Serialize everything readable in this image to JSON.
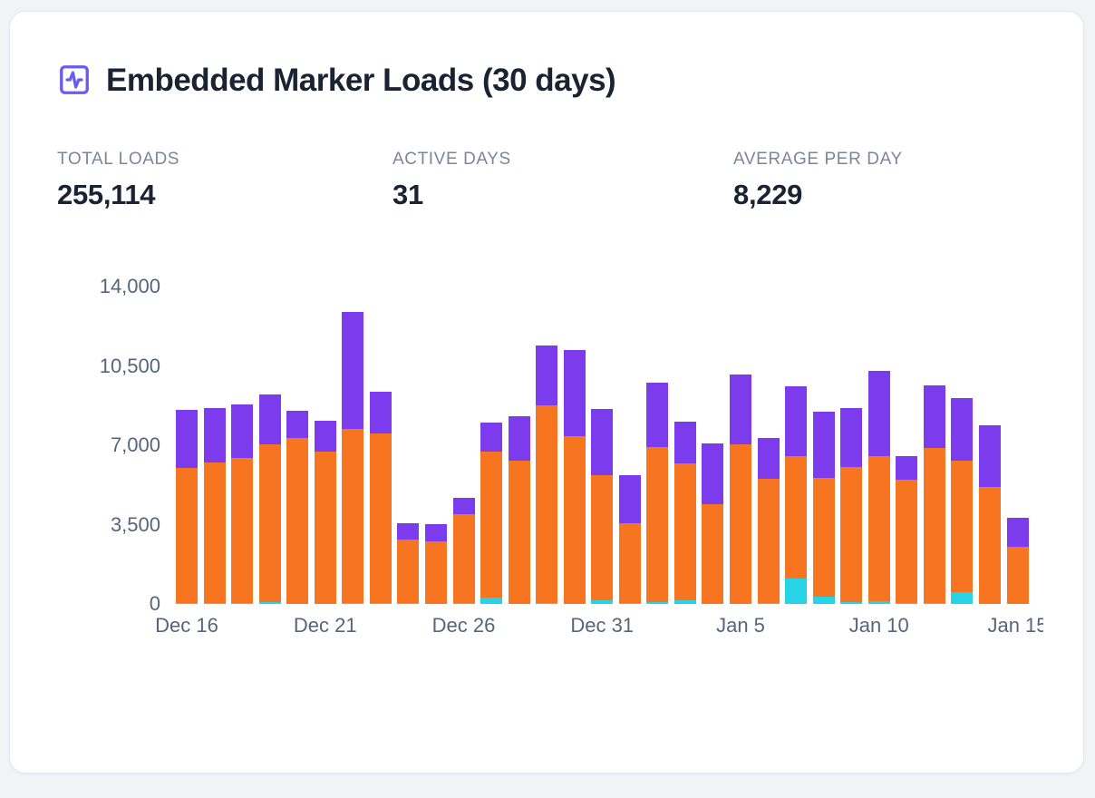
{
  "card": {
    "title": "Embedded Marker Loads (30 days)",
    "stats": [
      {
        "label": "TOTAL LOADS",
        "value": "255,114"
      },
      {
        "label": "ACTIVE DAYS",
        "value": "31"
      },
      {
        "label": "AVERAGE PER DAY",
        "value": "8,229"
      }
    ]
  },
  "colors": {
    "title_icon": "#6A5BF2",
    "title_text": "#1A2332",
    "stat_label": "#7B8697",
    "axis_text": "#55657A",
    "card_background": "#FFFFFF",
    "page_background": "#F2F3F7",
    "card_border": "#E2E7F0"
  },
  "chart_data": {
    "type": "bar",
    "stacked": true,
    "title": "Embedded Marker Loads (30 days)",
    "xlabel": "",
    "ylabel": "",
    "ylim": [
      0,
      14000
    ],
    "y_ticks": [
      0,
      3500,
      7000,
      10500,
      14000
    ],
    "y_tick_labels": [
      "0",
      "3,500",
      "7,000",
      "10,500",
      "14,000"
    ],
    "x_tick_labels": [
      "Dec 16",
      "Dec 21",
      "Dec 26",
      "Dec 31",
      "Jan 5",
      "Jan 10",
      "Jan 15"
    ],
    "x_tick_indices": [
      0,
      5,
      10,
      15,
      20,
      25,
      30
    ],
    "grid": false,
    "legend": false,
    "categories": [
      "Dec 16",
      "Dec 17",
      "Dec 18",
      "Dec 19",
      "Dec 20",
      "Dec 21",
      "Dec 22",
      "Dec 23",
      "Dec 24",
      "Dec 25",
      "Dec 26",
      "Dec 27",
      "Dec 28",
      "Dec 29",
      "Dec 30",
      "Dec 31",
      "Jan 1",
      "Jan 2",
      "Jan 3",
      "Jan 4",
      "Jan 5",
      "Jan 6",
      "Jan 7",
      "Jan 8",
      "Jan 9",
      "Jan 10",
      "Jan 11",
      "Jan 12",
      "Jan 13",
      "Jan 14",
      "Jan 15"
    ],
    "series": [
      {
        "name": "cyan-segment",
        "color": "#26D4E6",
        "values": [
          50,
          40,
          40,
          80,
          0,
          0,
          30,
          50,
          40,
          0,
          40,
          280,
          0,
          30,
          0,
          170,
          60,
          80,
          150,
          0,
          0,
          60,
          1114,
          330,
          90,
          130,
          40,
          30,
          530,
          0,
          0
        ]
      },
      {
        "name": "orange-segment",
        "color": "#F77420",
        "values": [
          5950,
          6200,
          6390,
          6980,
          7330,
          6710,
          7700,
          7480,
          2800,
          2760,
          3920,
          6450,
          6330,
          8730,
          7400,
          5500,
          3500,
          6850,
          6050,
          4400,
          7030,
          5470,
          5420,
          5230,
          5940,
          6380,
          5430,
          6860,
          5800,
          5160,
          2530
        ]
      },
      {
        "name": "purple-segment",
        "color": "#7C3BEC",
        "values": [
          2560,
          2390,
          2370,
          2180,
          1200,
          1360,
          5160,
          1830,
          710,
          750,
          710,
          1270,
          1940,
          2630,
          3790,
          2930,
          2110,
          2830,
          1830,
          2670,
          3080,
          1780,
          3070,
          2910,
          2610,
          3780,
          1060,
          2740,
          2740,
          2710,
          1270
        ]
      }
    ]
  }
}
